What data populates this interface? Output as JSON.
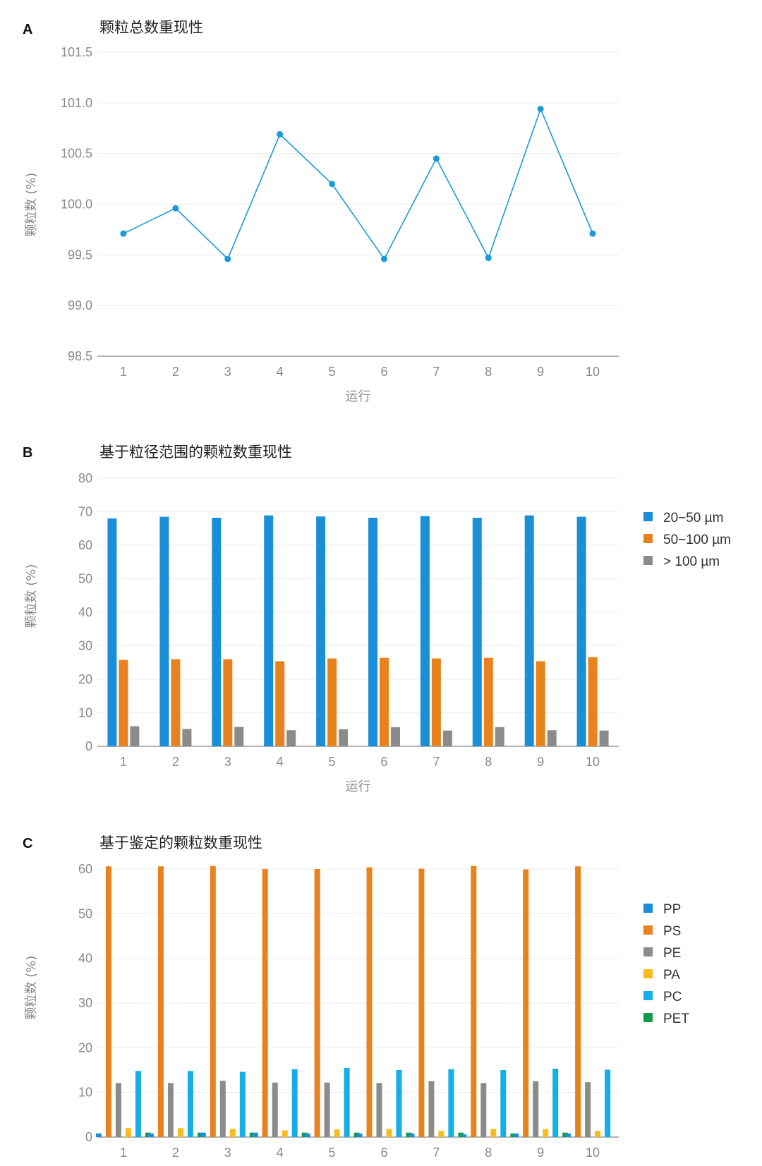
{
  "chart_data": [
    {
      "id": "A",
      "panel_letter": "A",
      "type": "line",
      "title": "颗粒总数重现性",
      "xlabel": "运行",
      "ylabel": "颗粒数 (%)",
      "categories": [
        "1",
        "2",
        "3",
        "4",
        "5",
        "6",
        "7",
        "8",
        "9",
        "10"
      ],
      "ylim": [
        98.5,
        101.5
      ],
      "yticks": [
        "98.5",
        "99.0",
        "99.5",
        "100.0",
        "100.5",
        "101.0",
        "101.5"
      ],
      "legend": "none",
      "grid": true,
      "series": [
        {
          "name": "颗粒总数",
          "color": "#1a9ad6",
          "values": [
            99.71,
            99.96,
            99.46,
            100.69,
            100.2,
            99.46,
            100.45,
            99.47,
            100.94,
            99.71
          ]
        }
      ]
    },
    {
      "id": "B",
      "panel_letter": "B",
      "type": "bar",
      "title": "基于粒径范围的颗粒数重现性",
      "xlabel": "运行",
      "ylabel": "颗粒数 (%)",
      "categories": [
        "1",
        "2",
        "3",
        "4",
        "5",
        "6",
        "7",
        "8",
        "9",
        "10"
      ],
      "ylim": [
        0,
        80
      ],
      "yticks": [
        "0",
        "10",
        "20",
        "30",
        "40",
        "50",
        "60",
        "70",
        "80"
      ],
      "legend": "right",
      "grid": true,
      "series": [
        {
          "name": "20−50 µm",
          "color": "#1a8fd8",
          "values": [
            68.0,
            68.5,
            68.2,
            68.9,
            68.6,
            68.2,
            68.7,
            68.2,
            68.9,
            68.5
          ]
        },
        {
          "name": "50−100 µm",
          "color": "#e8821e",
          "values": [
            25.8,
            26.0,
            26.0,
            25.4,
            26.2,
            26.4,
            26.2,
            26.4,
            25.4,
            26.6
          ]
        },
        {
          "name": "> 100 µm",
          "color": "#8b8b8b",
          "values": [
            6.0,
            5.2,
            5.8,
            4.8,
            5.1,
            5.7,
            4.7,
            5.7,
            4.8,
            4.7
          ]
        }
      ]
    },
    {
      "id": "C",
      "panel_letter": "C",
      "type": "bar",
      "title": "基于鉴定的颗粒数重现性",
      "xlabel": "",
      "ylabel": "颗粒数 (%)",
      "categories": [
        "1",
        "2",
        "3",
        "4",
        "5",
        "6",
        "7",
        "8",
        "9",
        "10"
      ],
      "ylim": [
        0,
        60
      ],
      "yticks": [
        "0",
        "10",
        "20",
        "30",
        "40",
        "50",
        "60"
      ],
      "legend": "right",
      "grid": true,
      "series": [
        {
          "name": "PP",
          "color": "#1a8fd8",
          "values": [
            0.8,
            0.8,
            1.0,
            1.0,
            0.8,
            0.8,
            0.8,
            0.6,
            0.8,
            0.8
          ]
        },
        {
          "name": "PS",
          "color": "#e8821e",
          "values": [
            60.6,
            60.6,
            60.7,
            60.0,
            60.0,
            60.4,
            60.1,
            60.7,
            59.9,
            60.6
          ]
        },
        {
          "name": "PE",
          "color": "#8b8b8b",
          "values": [
            12.1,
            12.1,
            12.6,
            12.2,
            12.2,
            12.1,
            12.5,
            12.1,
            12.5,
            12.3
          ]
        },
        {
          "name": "PA",
          "color": "#f5bd1f",
          "values": [
            2.0,
            2.0,
            1.8,
            1.5,
            1.7,
            1.8,
            1.4,
            1.8,
            1.8,
            1.4
          ]
        },
        {
          "name": "PC",
          "color": "#16aee6",
          "values": [
            14.8,
            14.8,
            14.6,
            15.2,
            15.5,
            15.0,
            15.2,
            15.0,
            15.3,
            15.1
          ]
        },
        {
          "name": "PET",
          "color": "#149a4c",
          "values": [
            1.0,
            1.0,
            1.0,
            1.0,
            1.0,
            1.0,
            1.0,
            0.8,
            1.0,
            0.0
          ]
        }
      ]
    }
  ]
}
